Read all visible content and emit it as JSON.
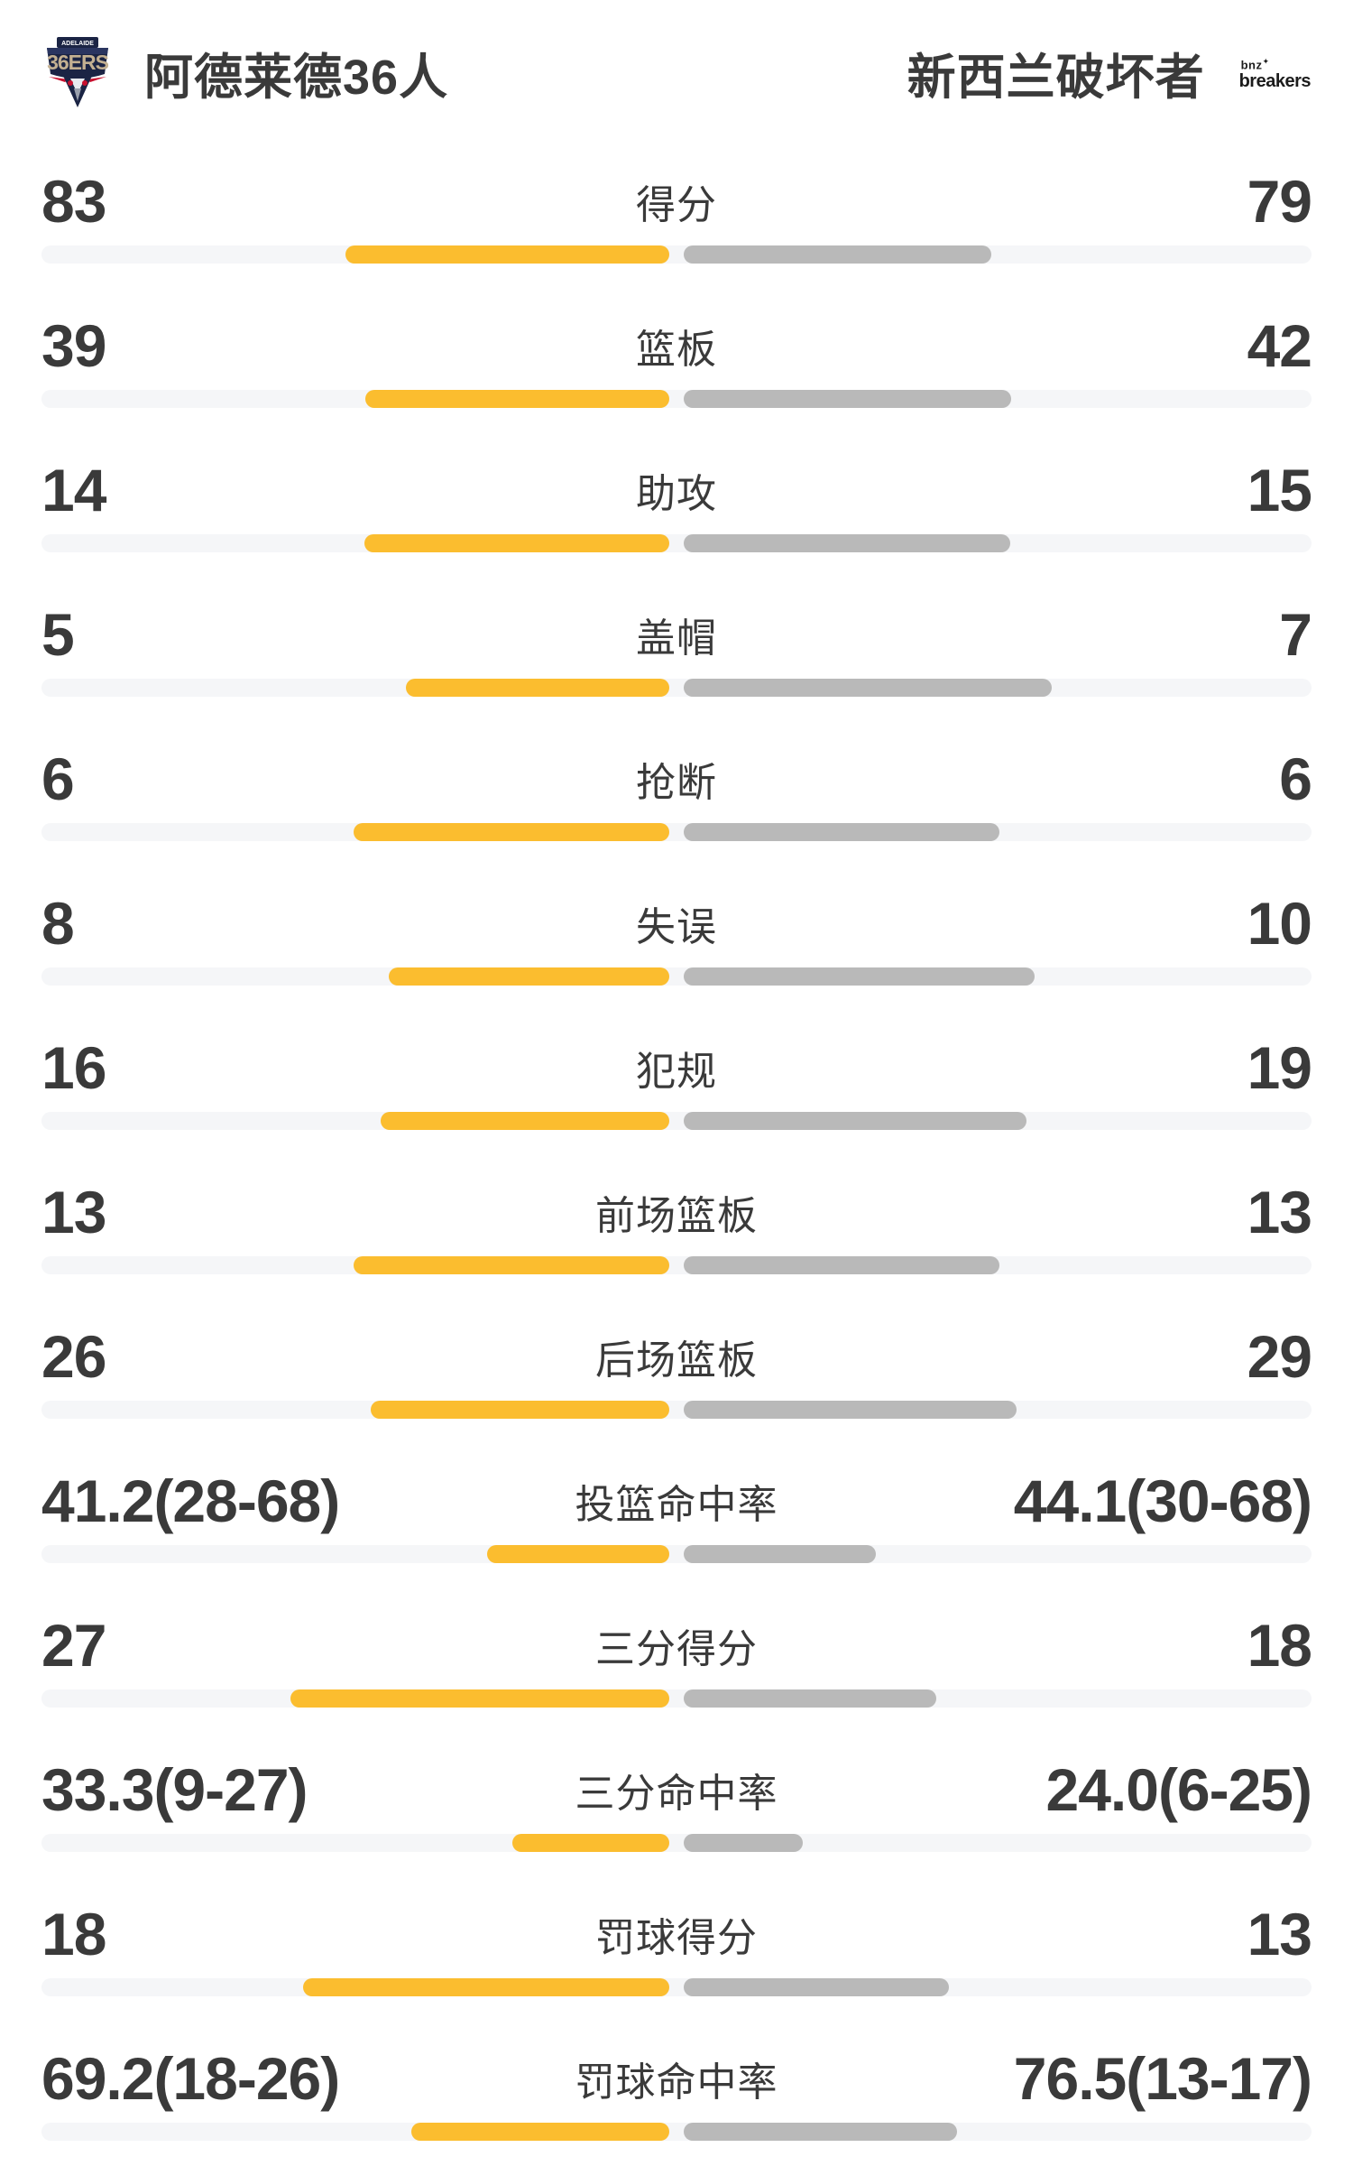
{
  "header": {
    "home": {
      "name": "阿德莱德36人",
      "crest_banner": "ADELAIDE",
      "crest_main": "36ERS"
    },
    "away": {
      "name": "新西兰破坏者",
      "logo_line1": "bnz",
      "logo_spark": "✦",
      "logo_line2": "breakers"
    }
  },
  "colors": {
    "home_bar": "#fbbd2f",
    "away_bar": "#b9b9b9",
    "track": "#f5f6f8",
    "text": "#3a3a3a",
    "crest_navy": "#1b2444",
    "crest_tan": "#c3b091",
    "crest_red": "#c8102e"
  },
  "rows": [
    {
      "label": "得分",
      "left": "83",
      "right": "79",
      "left_bar": 359,
      "right_bar": 341
    },
    {
      "label": "篮板",
      "left": "39",
      "right": "42",
      "left_bar": 337,
      "right_bar": 363
    },
    {
      "label": "助攻",
      "left": "14",
      "right": "15",
      "left_bar": 338,
      "right_bar": 362
    },
    {
      "label": "盖帽",
      "left": "5",
      "right": "7",
      "left_bar": 292,
      "right_bar": 408
    },
    {
      "label": "抢断",
      "left": "6",
      "right": "6",
      "left_bar": 350,
      "right_bar": 350
    },
    {
      "label": "失误",
      "left": "8",
      "right": "10",
      "left_bar": 311,
      "right_bar": 389
    },
    {
      "label": "犯规",
      "left": "16",
      "right": "19",
      "left_bar": 320,
      "right_bar": 380
    },
    {
      "label": "前场篮板",
      "left": "13",
      "right": "13",
      "left_bar": 350,
      "right_bar": 350
    },
    {
      "label": "后场篮板",
      "left": "26",
      "right": "29",
      "left_bar": 331,
      "right_bar": 369
    },
    {
      "label": "投篮命中率",
      "left": "41.2(28-68)",
      "right": "44.1(30-68)",
      "left_bar": 202,
      "right_bar": 213
    },
    {
      "label": "三分得分",
      "left": "27",
      "right": "18",
      "left_bar": 420,
      "right_bar": 280
    },
    {
      "label": "三分命中率",
      "left": "33.3(9-27)",
      "right": "24.0(6-25)",
      "left_bar": 174,
      "right_bar": 132
    },
    {
      "label": "罚球得分",
      "left": "18",
      "right": "13",
      "left_bar": 406,
      "right_bar": 294
    },
    {
      "label": "罚球命中率",
      "left": "69.2(18-26)",
      "right": "76.5(13-17)",
      "left_bar": 286,
      "right_bar": 303
    }
  ],
  "chart_data": {
    "type": "bar",
    "orientation": "horizontal-paired",
    "title": "阿德莱德36人 vs 新西兰破坏者",
    "categories": [
      "得分",
      "篮板",
      "助攻",
      "盖帽",
      "抢断",
      "失误",
      "犯规",
      "前场篮板",
      "后场篮板",
      "投篮命中率",
      "三分得分",
      "三分命中率",
      "罚球得分",
      "罚球命中率"
    ],
    "series": [
      {
        "name": "阿德莱德36人",
        "color": "#fbbd2f",
        "values": [
          83,
          39,
          14,
          5,
          6,
          8,
          16,
          13,
          26,
          41.2,
          27,
          33.3,
          18,
          69.2
        ],
        "display_labels": [
          "83",
          "39",
          "14",
          "5",
          "6",
          "8",
          "16",
          "13",
          "26",
          "41.2(28-68)",
          "27",
          "33.3(9-27)",
          "18",
          "69.2(18-26)"
        ]
      },
      {
        "name": "新西兰破坏者",
        "color": "#b9b9b9",
        "values": [
          79,
          42,
          15,
          7,
          6,
          10,
          19,
          13,
          29,
          44.1,
          18,
          24.0,
          13,
          76.5
        ],
        "display_labels": [
          "79",
          "42",
          "15",
          "7",
          "6",
          "10",
          "19",
          "13",
          "29",
          "44.1(30-68)",
          "18",
          "24.0(6-25)",
          "13",
          "76.5(13-17)"
        ]
      }
    ],
    "legend_position": "top",
    "grid": false,
    "notes": "count rows share a fixed paired-bar length; percentage rows scale by made/attempted ratio"
  }
}
